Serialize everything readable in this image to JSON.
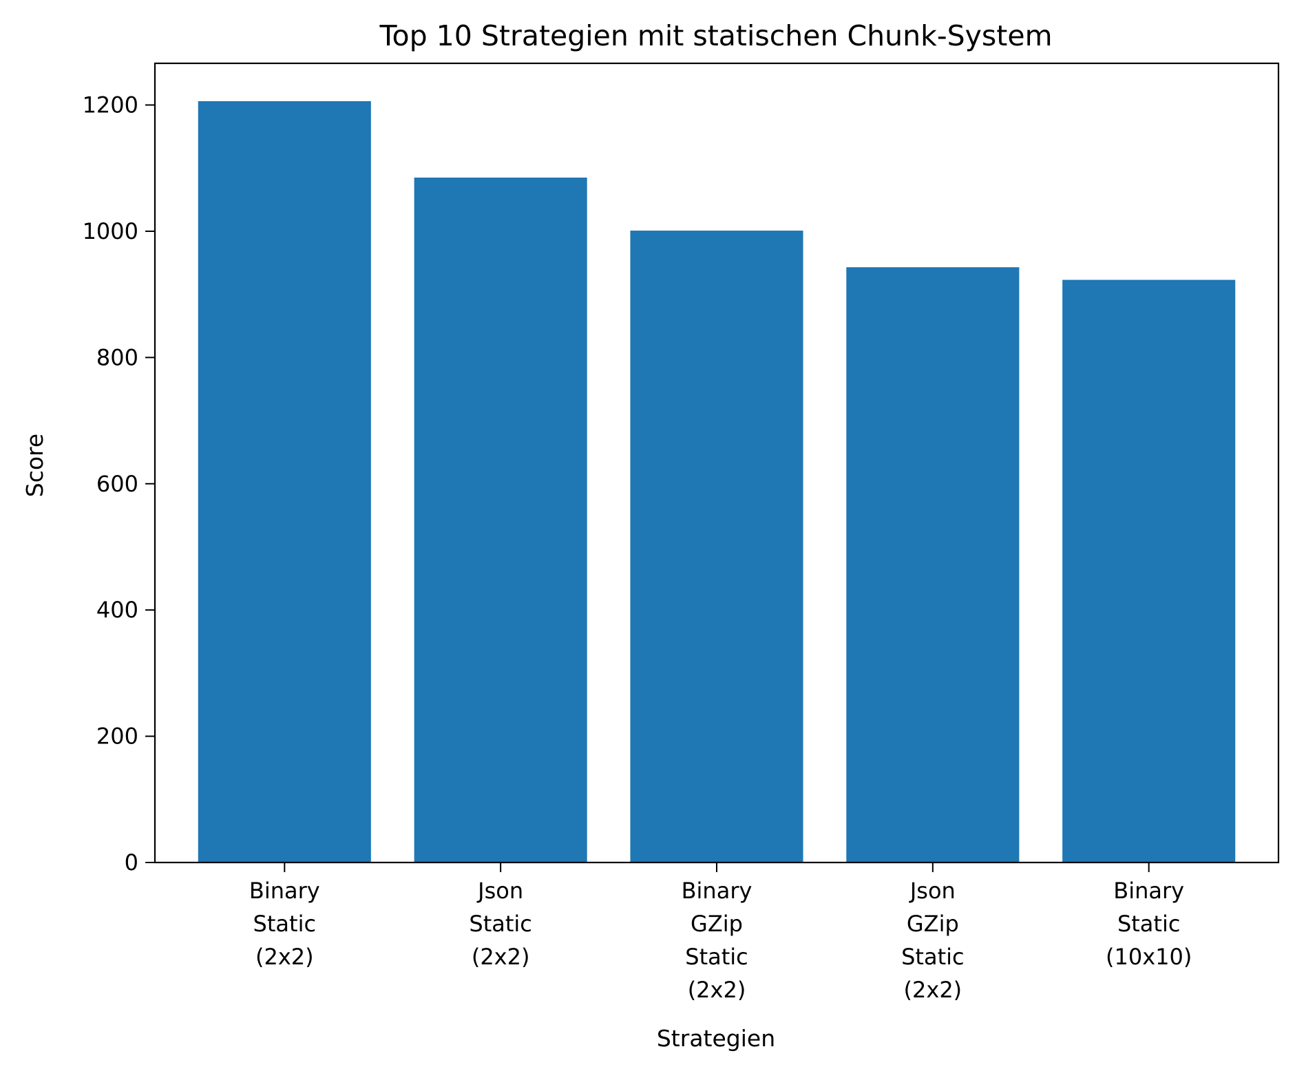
{
  "chart_data": {
    "type": "bar",
    "title": "Top 10 Strategien mit statischen Chunk-System",
    "xlabel": "Strategien",
    "ylabel": "Score",
    "categories": [
      "Binary\nStatic\n(2x2)",
      "Json\nStatic\n(2x2)",
      "Binary\nGZip\nStatic\n(2x2)",
      "Json\nGZip\nStatic\n(2x2)",
      "Binary\nStatic\n(10x10)"
    ],
    "values": [
      1206,
      1085,
      1001,
      943,
      923
    ],
    "ylim": [
      0,
      1266
    ],
    "yticks": [
      0,
      200,
      400,
      600,
      800,
      1000,
      1200
    ],
    "grid": false,
    "bar_color": "#1f77b4"
  }
}
